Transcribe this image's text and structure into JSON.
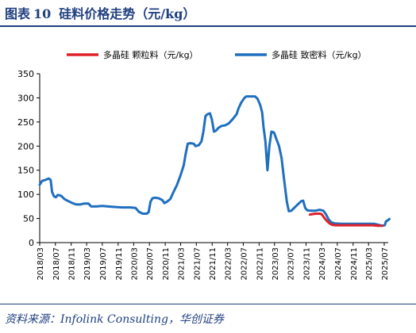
{
  "figure": {
    "label": "图表",
    "number": "10",
    "title": "硅料价格走势（元/kg）",
    "source": "资料来源：Infolink Consulting，华创证券"
  },
  "colors": {
    "title": "#1f3f7f",
    "dense": "#1f6fbf",
    "granular": "#e0202a"
  },
  "chart_data": {
    "type": "line",
    "ylim": [
      0,
      350
    ],
    "yticks": [
      0,
      50,
      100,
      150,
      200,
      250,
      300,
      350
    ],
    "xticks": [
      "2018/03",
      "2018/07",
      "2018/11",
      "2019/03",
      "2019/07",
      "2019/11",
      "2020/03",
      "2020/07",
      "2020/11",
      "2021/03",
      "2021/07",
      "2021/11",
      "2022/03",
      "2022/07",
      "2022/11",
      "2023/03",
      "2023/07",
      "2023/11",
      "2024/03",
      "2024/07",
      "2024/11",
      "2025/03",
      "2025/07"
    ],
    "x_start": "2018/03",
    "x_end": "2025/08",
    "legend_position": "top",
    "series": [
      {
        "name": "多晶硅 颗粒料（元/kg）",
        "color": "#e0202a",
        "points": [
          [
            "2023-12-01",
            58
          ],
          [
            "2023-12-20",
            59
          ],
          [
            "2024-01-15",
            60
          ],
          [
            "2024-02-15",
            60
          ],
          [
            "2024-03-01",
            59
          ],
          [
            "2024-03-20",
            52
          ],
          [
            "2024-04-10",
            45
          ],
          [
            "2024-05-01",
            40
          ],
          [
            "2024-05-20",
            37
          ],
          [
            "2024-06-15",
            36
          ],
          [
            "2024-08-01",
            36
          ],
          [
            "2024-10-01",
            36
          ],
          [
            "2024-12-01",
            36
          ],
          [
            "2025-02-01",
            36
          ],
          [
            "2025-04-01",
            36
          ],
          [
            "2025-05-15",
            35
          ],
          [
            "2025-06-15",
            35
          ]
        ]
      },
      {
        "name": "多晶硅 致密料（元/kg）",
        "color": "#1f6fbf",
        "points": [
          [
            "2018-03-01",
            120
          ],
          [
            "2018-03-20",
            128
          ],
          [
            "2018-04-15",
            130
          ],
          [
            "2018-05-10",
            133
          ],
          [
            "2018-05-25",
            130
          ],
          [
            "2018-06-05",
            105
          ],
          [
            "2018-06-20",
            96
          ],
          [
            "2018-07-05",
            94
          ],
          [
            "2018-07-20",
            99
          ],
          [
            "2018-08-15",
            97
          ],
          [
            "2018-09-10",
            90
          ],
          [
            "2018-10-10",
            86
          ],
          [
            "2018-11-10",
            82
          ],
          [
            "2018-12-10",
            79
          ],
          [
            "2019-01-10",
            79
          ],
          [
            "2019-02-10",
            81
          ],
          [
            "2019-03-15",
            81
          ],
          [
            "2019-04-05",
            75
          ],
          [
            "2019-05-15",
            75
          ],
          [
            "2019-07-01",
            76
          ],
          [
            "2019-08-15",
            75
          ],
          [
            "2019-10-01",
            74
          ],
          [
            "2019-12-01",
            73
          ],
          [
            "2020-02-01",
            73
          ],
          [
            "2020-03-15",
            72
          ],
          [
            "2020-04-10",
            64
          ],
          [
            "2020-05-10",
            60
          ],
          [
            "2020-06-10",
            60
          ],
          [
            "2020-06-25",
            63
          ],
          [
            "2020-07-10",
            85
          ],
          [
            "2020-07-25",
            92
          ],
          [
            "2020-08-15",
            93
          ],
          [
            "2020-09-10",
            92
          ],
          [
            "2020-10-10",
            88
          ],
          [
            "2020-10-25",
            82
          ],
          [
            "2020-11-10",
            84
          ],
          [
            "2020-12-10",
            90
          ],
          [
            "2021-01-05",
            105
          ],
          [
            "2021-02-01",
            120
          ],
          [
            "2021-03-01",
            140
          ],
          [
            "2021-03-25",
            160
          ],
          [
            "2021-04-10",
            185
          ],
          [
            "2021-04-25",
            205
          ],
          [
            "2021-05-15",
            206
          ],
          [
            "2021-06-10",
            205
          ],
          [
            "2021-06-25",
            200
          ],
          [
            "2021-07-20",
            202
          ],
          [
            "2021-08-10",
            210
          ],
          [
            "2021-08-25",
            230
          ],
          [
            "2021-09-10",
            262
          ],
          [
            "2021-09-25",
            266
          ],
          [
            "2021-10-15",
            268
          ],
          [
            "2021-10-30",
            255
          ],
          [
            "2021-11-15",
            230
          ],
          [
            "2021-12-01",
            232
          ],
          [
            "2021-12-20",
            238
          ],
          [
            "2022-01-15",
            242
          ],
          [
            "2022-02-10",
            243
          ],
          [
            "2022-03-10",
            247
          ],
          [
            "2022-04-10",
            256
          ],
          [
            "2022-05-10",
            266
          ],
          [
            "2022-05-25",
            278
          ],
          [
            "2022-06-15",
            290
          ],
          [
            "2022-07-10",
            300
          ],
          [
            "2022-07-25",
            303
          ],
          [
            "2022-09-01",
            303
          ],
          [
            "2022-10-01",
            303
          ],
          [
            "2022-10-20",
            298
          ],
          [
            "2022-11-10",
            285
          ],
          [
            "2022-11-25",
            270
          ],
          [
            "2022-12-05",
            240
          ],
          [
            "2022-12-20",
            210
          ],
          [
            "2023-01-05",
            150
          ],
          [
            "2023-01-20",
            200
          ],
          [
            "2023-02-05",
            230
          ],
          [
            "2023-02-25",
            228
          ],
          [
            "2023-03-15",
            215
          ],
          [
            "2023-04-05",
            200
          ],
          [
            "2023-04-25",
            175
          ],
          [
            "2023-05-15",
            130
          ],
          [
            "2023-06-05",
            85
          ],
          [
            "2023-06-20",
            65
          ],
          [
            "2023-07-10",
            66
          ],
          [
            "2023-08-01",
            72
          ],
          [
            "2023-09-01",
            80
          ],
          [
            "2023-09-25",
            86
          ],
          [
            "2023-10-10",
            87
          ],
          [
            "2023-10-25",
            72
          ],
          [
            "2023-11-10",
            67
          ],
          [
            "2023-12-10",
            66
          ],
          [
            "2024-01-10",
            66
          ],
          [
            "2024-02-15",
            68
          ],
          [
            "2024-03-15",
            66
          ],
          [
            "2024-04-05",
            58
          ],
          [
            "2024-04-25",
            48
          ],
          [
            "2024-05-15",
            42
          ],
          [
            "2024-06-10",
            40
          ],
          [
            "2024-08-01",
            39
          ],
          [
            "2024-10-01",
            39
          ],
          [
            "2024-12-01",
            39
          ],
          [
            "2025-02-01",
            39
          ],
          [
            "2025-03-15",
            39
          ],
          [
            "2025-04-15",
            39
          ],
          [
            "2025-05-15",
            37
          ],
          [
            "2025-06-15",
            35
          ],
          [
            "2025-07-05",
            36
          ],
          [
            "2025-07-15",
            44
          ],
          [
            "2025-07-28",
            46
          ],
          [
            "2025-08-10",
            49
          ]
        ]
      }
    ]
  }
}
